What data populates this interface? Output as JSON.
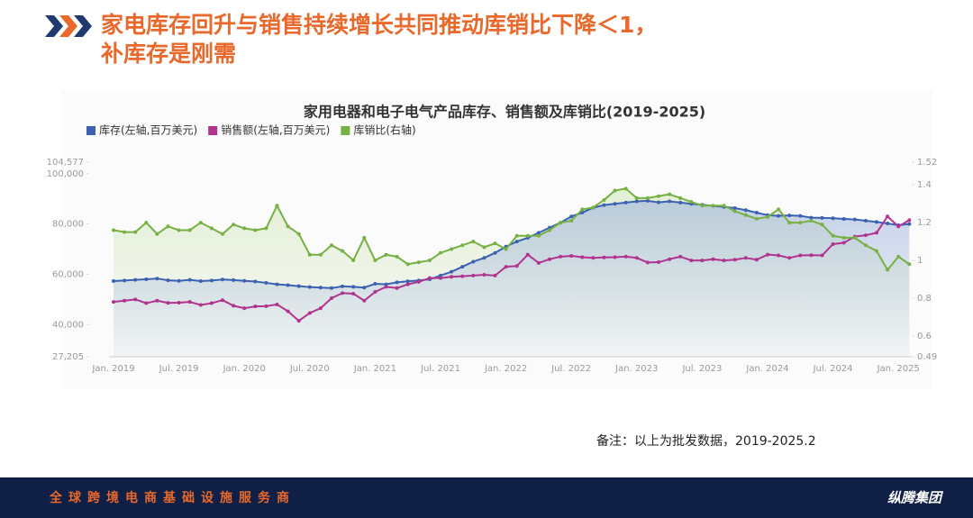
{
  "header": {
    "title": [
      "家电库存回升与销售持续增长共同推动库销比下降＜1，",
      "补库存是刚需"
    ]
  },
  "chart_data": {
    "type": "line",
    "title": "家用电器和电子电气产品库存、销售额及库销比(2019-2025)",
    "categories": [
      "Jan. 2019",
      null,
      null,
      null,
      null,
      null,
      "Jul. 2019",
      null,
      null,
      null,
      null,
      null,
      "Jan. 2020",
      null,
      null,
      null,
      null,
      null,
      "Jul. 2020",
      null,
      null,
      null,
      null,
      null,
      "Jan. 2021",
      null,
      null,
      null,
      null,
      null,
      "Jul. 2021",
      null,
      null,
      null,
      null,
      null,
      "Jan. 2022",
      null,
      null,
      null,
      null,
      null,
      "Jul. 2022",
      null,
      null,
      null,
      null,
      null,
      "Jan. 2023",
      null,
      null,
      null,
      null,
      null,
      "Jul. 2023",
      null,
      null,
      null,
      null,
      null,
      "Jan. 2024",
      null,
      null,
      null,
      null,
      null,
      "Jul. 2024",
      null,
      null,
      null,
      null,
      null,
      "Jan. 2025",
      null
    ],
    "series": [
      {
        "name": "库存(左轴,百万美元)",
        "color": "#3a62b0",
        "area": "#9fb4dc",
        "values": [
          57300,
          57500,
          57800,
          58000,
          58300,
          57600,
          57400,
          57800,
          57300,
          57500,
          57900,
          57700,
          57400,
          57100,
          56600,
          56000,
          55700,
          55300,
          54900,
          54700,
          54500,
          55200,
          55000,
          54700,
          56200,
          56000,
          56800,
          57200,
          57500,
          58000,
          59500,
          61000,
          63000,
          65000,
          66500,
          68500,
          71000,
          73000,
          74500,
          76500,
          78500,
          80500,
          83000,
          84500,
          86500,
          87500,
          88000,
          88500,
          89000,
          89200,
          88600,
          89000,
          88500,
          88000,
          87600,
          87200,
          86800,
          86300,
          85500,
          84500,
          83500,
          83200,
          83400,
          83200,
          82500,
          82400,
          82300,
          82000,
          81800,
          81300,
          80800,
          80200,
          79500,
          80000
        ]
      },
      {
        "name": "销售额(左轴,百万美元)",
        "color": "#b0338f",
        "values": [
          49000,
          49500,
          50000,
          48500,
          49500,
          48600,
          48700,
          49000,
          47800,
          48500,
          49700,
          47500,
          46500,
          47200,
          47300,
          48000,
          45300,
          41500,
          44600,
          46500,
          50500,
          52500,
          52300,
          49500,
          53000,
          55000,
          54500,
          56000,
          57000,
          58500,
          58500,
          59000,
          59200,
          59500,
          59800,
          59500,
          63000,
          63300,
          67800,
          64500,
          66000,
          67000,
          67300,
          66800,
          66500,
          66700,
          66800,
          67000,
          66500,
          64700,
          64800,
          66000,
          67000,
          65500,
          65500,
          66000,
          65500,
          65800,
          66500,
          65800,
          67800,
          67500,
          66500,
          67500,
          67600,
          67500,
          72000,
          72500,
          75000,
          75500,
          76500,
          83000,
          79000,
          81500
        ]
      },
      {
        "name": "库销比(右轴)",
        "color": "#77b043",
        "area": "#d3e6bd",
        "axis": "y2",
        "values": [
          1.16,
          1.15,
          1.15,
          1.2,
          1.14,
          1.18,
          1.16,
          1.16,
          1.2,
          1.17,
          1.14,
          1.19,
          1.17,
          1.16,
          1.17,
          1.29,
          1.18,
          1.14,
          1.03,
          1.03,
          1.08,
          1.05,
          1.0,
          1.12,
          1.0,
          1.03,
          1.02,
          0.98,
          0.99,
          1.0,
          1.04,
          1.06,
          1.08,
          1.1,
          1.07,
          1.09,
          1.06,
          1.13,
          1.13,
          1.13,
          1.16,
          1.2,
          1.21,
          1.27,
          1.28,
          1.32,
          1.37,
          1.38,
          1.33,
          1.33,
          1.34,
          1.35,
          1.33,
          1.31,
          1.29,
          1.29,
          1.29,
          1.26,
          1.24,
          1.22,
          1.23,
          1.27,
          1.2,
          1.2,
          1.21,
          1.19,
          1.13,
          1.12,
          1.12,
          1.08,
          1.05,
          0.95,
          1.02,
          0.98
        ]
      }
    ],
    "ylim": [
      27205,
      104577
    ],
    "yticks": [
      {
        "value": 27205,
        "label": "27,205"
      },
      {
        "value": 40000,
        "label": "40,000"
      },
      {
        "value": 60000,
        "label": "60,000"
      },
      {
        "value": 80000,
        "label": "80,000"
      },
      {
        "value": 100000,
        "label": "100,000"
      },
      {
        "value": 104577,
        "label": "104,577"
      }
    ],
    "y2lim": [
      0.49,
      1.52
    ],
    "y2ticks": [
      0.49,
      0.6,
      0.8,
      1,
      1.2,
      1.4,
      1.52
    ],
    "grid": false,
    "legend": "top-left"
  },
  "note": "备注：以上为批发数据，2019-2025.2",
  "footer": {
    "slogan": "全球跨境电商基础设施服务商",
    "logo": "纵腾集团"
  }
}
